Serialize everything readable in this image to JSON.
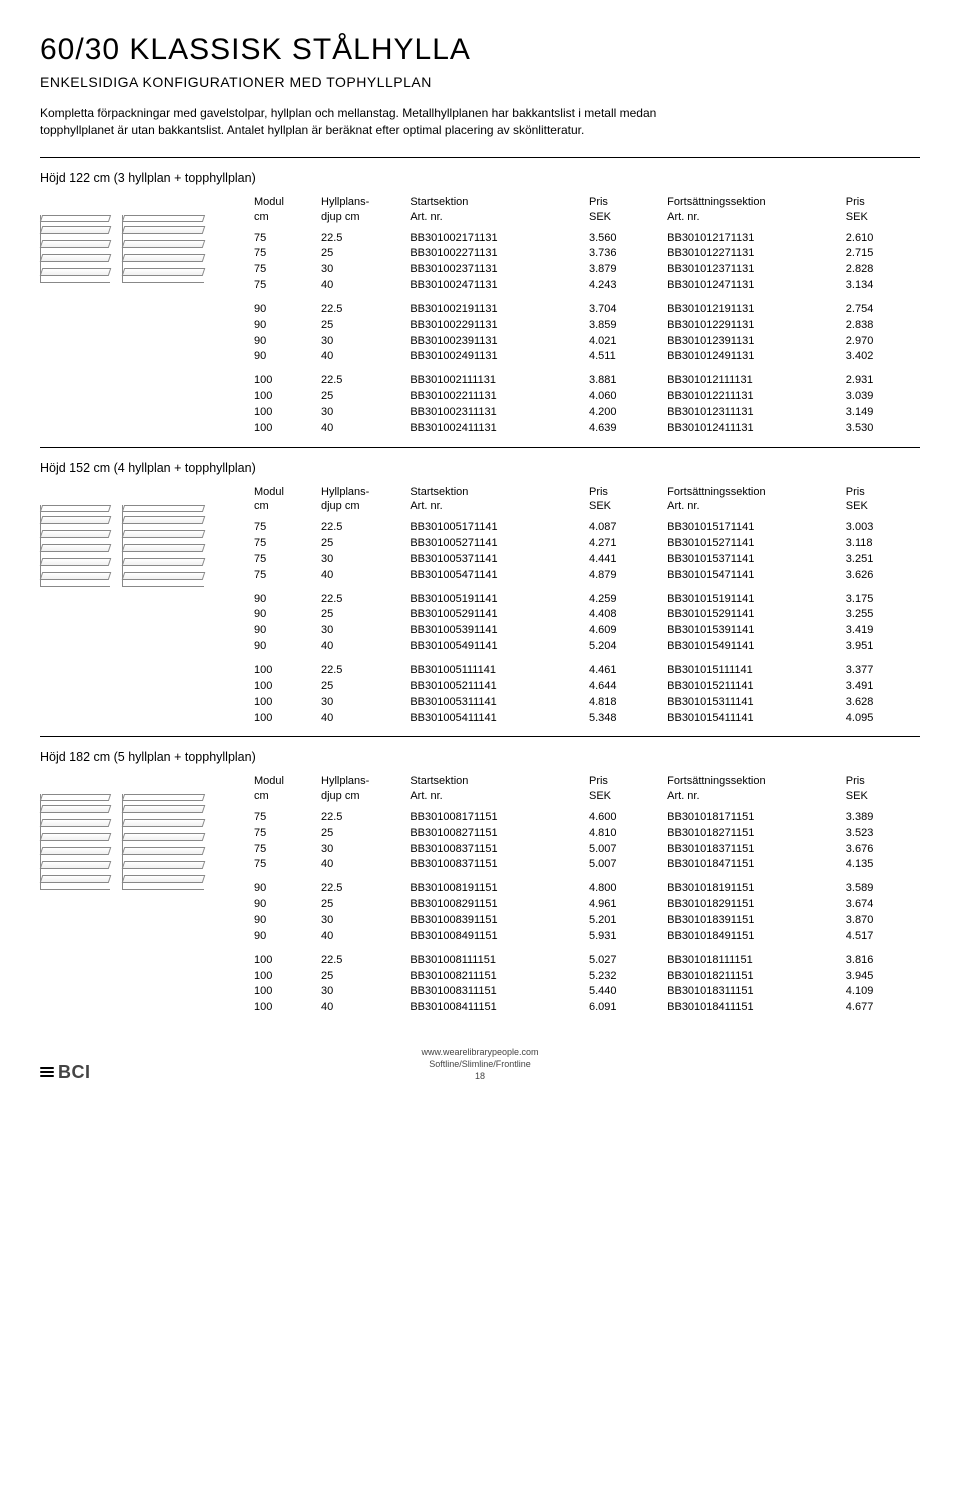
{
  "title": "60/30 KLASSISK STÅLHYLLA",
  "subtitle": "ENKELSIDIGA KONFIGURATIONER MED TOPHYLLPLAN",
  "intro": "Kompletta förpackningar med gavelstolpar, hyllplan och mellanstag. Metallhyllplanen har bakkantslist i metall medan topphyllplanet är utan bakkantslist. Antalet hyllplan är beräknat efter optimal placering av skönlitteratur.",
  "columns": {
    "modul": "Modul",
    "modul_unit": "cm",
    "djup": "Hyllplans-",
    "djup_unit": "djup cm",
    "start": "Startsektion",
    "start_unit": "Art. nr.",
    "pris1": "Pris",
    "pris1_unit": "SEK",
    "fort": "Fortsättningssektion",
    "fort_unit": "Art. nr.",
    "pris2": "Pris",
    "pris2_unit": "SEK"
  },
  "sections": [
    {
      "title": "Höjd 122 cm (3 hyllplan + topphyllplan)",
      "shelves": 4,
      "blocks": [
        [
          [
            "75",
            "22.5",
            "BB301002171131",
            "3.560",
            "BB301012171131",
            "2.610"
          ],
          [
            "75",
            "25",
            "BB301002271131",
            "3.736",
            "BB301012271131",
            "2.715"
          ],
          [
            "75",
            "30",
            "BB301002371131",
            "3.879",
            "BB301012371131",
            "2.828"
          ],
          [
            "75",
            "40",
            "BB301002471131",
            "4.243",
            "BB301012471131",
            "3.134"
          ]
        ],
        [
          [
            "90",
            "22.5",
            "BB301002191131",
            "3.704",
            "BB301012191131",
            "2.754"
          ],
          [
            "90",
            "25",
            "BB301002291131",
            "3.859",
            "BB301012291131",
            "2.838"
          ],
          [
            "90",
            "30",
            "BB301002391131",
            "4.021",
            "BB301012391131",
            "2.970"
          ],
          [
            "90",
            "40",
            "BB301002491131",
            "4.511",
            "BB301012491131",
            "3.402"
          ]
        ],
        [
          [
            "100",
            "22.5",
            "BB301002111131",
            "3.881",
            "BB301012111131",
            "2.931"
          ],
          [
            "100",
            "25",
            "BB301002211131",
            "4.060",
            "BB301012211131",
            "3.039"
          ],
          [
            "100",
            "30",
            "BB301002311131",
            "4.200",
            "BB301012311131",
            "3.149"
          ],
          [
            "100",
            "40",
            "BB301002411131",
            "4.639",
            "BB301012411131",
            "3.530"
          ]
        ]
      ]
    },
    {
      "title": "Höjd 152 cm (4 hyllplan + topphyllplan)",
      "shelves": 5,
      "blocks": [
        [
          [
            "75",
            "22.5",
            "BB301005171141",
            "4.087",
            "BB301015171141",
            "3.003"
          ],
          [
            "75",
            "25",
            "BB301005271141",
            "4.271",
            "BB301015271141",
            "3.118"
          ],
          [
            "75",
            "30",
            "BB301005371141",
            "4.441",
            "BB301015371141",
            "3.251"
          ],
          [
            "75",
            "40",
            "BB301005471141",
            "4.879",
            "BB301015471141",
            "3.626"
          ]
        ],
        [
          [
            "90",
            "22.5",
            "BB301005191141",
            "4.259",
            "BB301015191141",
            "3.175"
          ],
          [
            "90",
            "25",
            "BB301005291141",
            "4.408",
            "BB301015291141",
            "3.255"
          ],
          [
            "90",
            "30",
            "BB301005391141",
            "4.609",
            "BB301015391141",
            "3.419"
          ],
          [
            "90",
            "40",
            "BB301005491141",
            "5.204",
            "BB301015491141",
            "3.951"
          ]
        ],
        [
          [
            "100",
            "22.5",
            "BB301005111141",
            "4.461",
            "BB301015111141",
            "3.377"
          ],
          [
            "100",
            "25",
            "BB301005211141",
            "4.644",
            "BB301015211141",
            "3.491"
          ],
          [
            "100",
            "30",
            "BB301005311141",
            "4.818",
            "BB301015311141",
            "3.628"
          ],
          [
            "100",
            "40",
            "BB301005411141",
            "5.348",
            "BB301015411141",
            "4.095"
          ]
        ]
      ]
    },
    {
      "title": "Höjd 182 cm (5 hyllplan + topphyllplan)",
      "shelves": 6,
      "blocks": [
        [
          [
            "75",
            "22.5",
            "BB301008171151",
            "4.600",
            "BB301018171151",
            "3.389"
          ],
          [
            "75",
            "25",
            "BB301008271151",
            "4.810",
            "BB301018271151",
            "3.523"
          ],
          [
            "75",
            "30",
            "BB301008371151",
            "5.007",
            "BB301018371151",
            "3.676"
          ],
          [
            "75",
            "40",
            "BB301008371151",
            "5.007",
            "BB301018471151",
            "4.135"
          ]
        ],
        [
          [
            "90",
            "22.5",
            "BB301008191151",
            "4.800",
            "BB301018191151",
            "3.589"
          ],
          [
            "90",
            "25",
            "BB301008291151",
            "4.961",
            "BB301018291151",
            "3.674"
          ],
          [
            "90",
            "30",
            "BB301008391151",
            "5.201",
            "BB301018391151",
            "3.870"
          ],
          [
            "90",
            "40",
            "BB301008491151",
            "5.931",
            "BB301018491151",
            "4.517"
          ]
        ],
        [
          [
            "100",
            "22.5",
            "BB301008111151",
            "5.027",
            "BB301018111151",
            "3.816"
          ],
          [
            "100",
            "25",
            "BB301008211151",
            "5.232",
            "BB301018211151",
            "3.945"
          ],
          [
            "100",
            "30",
            "BB301008311151",
            "5.440",
            "BB301018311151",
            "4.109"
          ],
          [
            "100",
            "40",
            "BB301008411151",
            "6.091",
            "BB301018411151",
            "4.677"
          ]
        ]
      ]
    }
  ],
  "footer": {
    "url": "www.wearelibrarypeople.com",
    "line": "Softline/Slimline/Frontline",
    "page": "18",
    "brand": "BCI"
  }
}
